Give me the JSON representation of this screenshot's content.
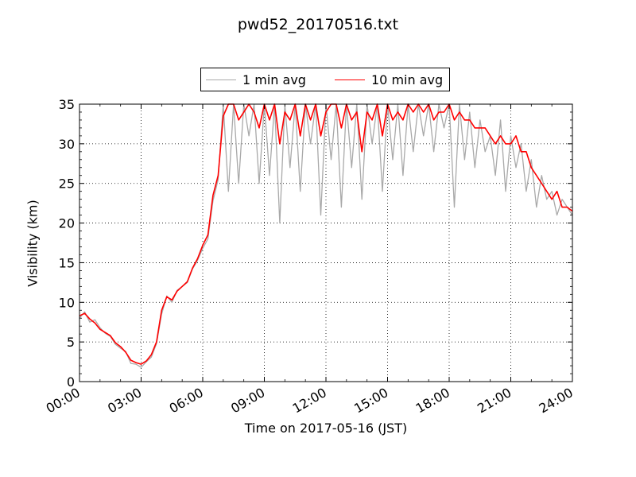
{
  "chart_data": {
    "type": "line",
    "title": "pwd52_20170516.txt",
    "xlabel": "Time on 2017-05-16 (JST)",
    "ylabel": "Visibility (km)",
    "xlim": [
      "00:00",
      "24:00"
    ],
    "ylim": [
      0,
      35
    ],
    "xticks": [
      "00:00",
      "03:00",
      "06:00",
      "09:00",
      "12:00",
      "15:00",
      "18:00",
      "21:00",
      "24:00"
    ],
    "yticks": [
      0,
      5,
      10,
      15,
      20,
      25,
      30,
      35
    ],
    "grid": true,
    "legend_position": "top-center",
    "series": [
      {
        "name": "1 min avg",
        "color": "#a9a9a9",
        "x": [
          "00:00",
          "00:15",
          "00:30",
          "00:45",
          "01:00",
          "01:15",
          "01:30",
          "01:45",
          "02:00",
          "02:15",
          "02:30",
          "02:45",
          "03:00",
          "03:15",
          "03:30",
          "03:45",
          "04:00",
          "04:15",
          "04:30",
          "04:45",
          "05:00",
          "05:15",
          "05:30",
          "05:45",
          "06:00",
          "06:15",
          "06:30",
          "06:45",
          "07:00",
          "07:15",
          "07:30",
          "07:45",
          "08:00",
          "08:15",
          "08:30",
          "08:45",
          "09:00",
          "09:15",
          "09:30",
          "09:45",
          "10:00",
          "10:15",
          "10:30",
          "10:45",
          "11:00",
          "11:15",
          "11:30",
          "11:45",
          "12:00",
          "12:15",
          "12:30",
          "12:45",
          "13:00",
          "13:15",
          "13:30",
          "13:45",
          "14:00",
          "14:15",
          "14:30",
          "14:45",
          "15:00",
          "15:15",
          "15:30",
          "15:45",
          "16:00",
          "16:15",
          "16:30",
          "16:45",
          "17:00",
          "17:15",
          "17:30",
          "17:45",
          "18:00",
          "18:15",
          "18:30",
          "18:45",
          "19:00",
          "19:15",
          "19:30",
          "19:45",
          "20:00",
          "20:15",
          "20:30",
          "20:45",
          "21:00",
          "21:15",
          "21:30",
          "21:45",
          "22:00",
          "22:15",
          "22:30",
          "22:45",
          "23:00",
          "23:15",
          "23:30",
          "23:45",
          "24:00"
        ],
        "y": [
          8.0,
          8.8,
          7.5,
          7.8,
          6.8,
          6.1,
          5.7,
          4.7,
          4.2,
          3.8,
          2.3,
          2.2,
          1.8,
          2.5,
          3.1,
          4.8,
          8.5,
          10.8,
          10.0,
          11.5,
          12.0,
          12.5,
          14.2,
          15.3,
          16.8,
          18.0,
          22.8,
          25.5,
          35,
          24,
          35,
          25,
          35,
          31,
          35,
          25,
          35,
          26,
          35,
          20,
          35,
          27,
          35,
          24,
          35,
          30,
          35,
          21,
          35,
          28,
          35,
          22,
          35,
          27,
          35,
          23,
          35,
          30,
          35,
          24,
          35,
          28,
          35,
          26,
          35,
          29,
          35,
          31,
          35,
          29,
          35,
          32,
          35,
          22,
          35,
          28,
          34,
          27,
          33,
          29,
          31,
          26,
          33,
          24,
          31,
          27,
          30,
          24,
          28,
          22,
          26,
          23,
          24,
          21,
          23,
          22,
          21
        ]
      },
      {
        "name": "10 min avg",
        "color": "#ff0000",
        "x": [
          "00:00",
          "00:15",
          "00:30",
          "00:45",
          "01:00",
          "01:15",
          "01:30",
          "01:45",
          "02:00",
          "02:15",
          "02:30",
          "02:45",
          "03:00",
          "03:15",
          "03:30",
          "03:45",
          "04:00",
          "04:15",
          "04:30",
          "04:45",
          "05:00",
          "05:15",
          "05:30",
          "05:45",
          "06:00",
          "06:15",
          "06:30",
          "06:45",
          "07:00",
          "07:15",
          "07:30",
          "07:45",
          "08:00",
          "08:15",
          "08:30",
          "08:45",
          "09:00",
          "09:15",
          "09:30",
          "09:45",
          "10:00",
          "10:15",
          "10:30",
          "10:45",
          "11:00",
          "11:15",
          "11:30",
          "11:45",
          "12:00",
          "12:15",
          "12:30",
          "12:45",
          "13:00",
          "13:15",
          "13:30",
          "13:45",
          "14:00",
          "14:15",
          "14:30",
          "14:45",
          "15:00",
          "15:15",
          "15:30",
          "15:45",
          "16:00",
          "16:15",
          "16:30",
          "16:45",
          "17:00",
          "17:15",
          "17:30",
          "17:45",
          "18:00",
          "18:15",
          "18:30",
          "18:45",
          "19:00",
          "19:15",
          "19:30",
          "19:45",
          "20:00",
          "20:15",
          "20:30",
          "20:45",
          "21:00",
          "21:15",
          "21:30",
          "21:45",
          "22:00",
          "22:15",
          "22:30",
          "22:45",
          "23:00",
          "23:15",
          "23:30",
          "23:45",
          "24:00"
        ],
        "y": [
          8.3,
          8.6,
          7.9,
          7.4,
          6.6,
          6.2,
          5.8,
          4.9,
          4.4,
          3.7,
          2.7,
          2.4,
          2.2,
          2.6,
          3.4,
          5.0,
          9.0,
          10.7,
          10.3,
          11.4,
          12.0,
          12.6,
          14.3,
          15.5,
          17.2,
          18.5,
          23.5,
          26.0,
          33.5,
          35,
          35,
          33,
          34,
          35,
          34,
          32,
          35,
          33,
          35,
          30,
          34,
          33,
          35,
          31,
          35,
          33,
          35,
          31,
          34,
          35,
          35,
          32,
          35,
          33,
          34,
          29,
          34,
          33,
          35,
          31,
          35,
          33,
          34,
          33,
          35,
          34,
          35,
          34,
          35,
          33,
          34,
          34,
          35,
          33,
          34,
          33,
          33,
          32,
          32,
          32,
          31,
          30,
          31,
          30,
          30,
          31,
          29,
          29,
          27,
          26,
          25,
          24,
          23,
          24,
          22,
          22,
          21.5
        ]
      }
    ]
  }
}
